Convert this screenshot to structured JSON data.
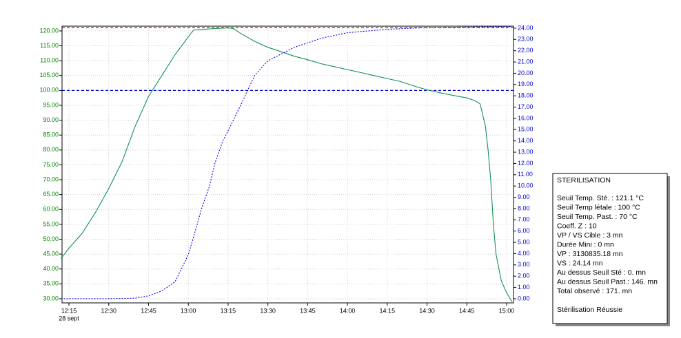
{
  "chart_data": {
    "type": "line",
    "xlim": [
      732.4,
      902.6
    ],
    "xticks": [
      {
        "value": 735,
        "label": "12:15"
      },
      {
        "value": 750,
        "label": "12:30"
      },
      {
        "value": 765,
        "label": "12:45"
      },
      {
        "value": 780,
        "label": "13:00"
      },
      {
        "value": 795,
        "label": "13:15"
      },
      {
        "value": 810,
        "label": "13:30"
      },
      {
        "value": 825,
        "label": "13:45"
      },
      {
        "value": 840,
        "label": "14:00"
      },
      {
        "value": 855,
        "label": "14:15"
      },
      {
        "value": 870,
        "label": "14:30"
      },
      {
        "value": 885,
        "label": "14:45"
      },
      {
        "value": 900,
        "label": "15:00"
      }
    ],
    "date_label": "28 sept",
    "ylim": [
      28.6,
      121.6
    ],
    "yticks": [
      {
        "value": 30,
        "label": "30.00"
      },
      {
        "value": 35,
        "label": "35.00"
      },
      {
        "value": 40,
        "label": "40.00"
      },
      {
        "value": 45,
        "label": "45.00"
      },
      {
        "value": 50,
        "label": "50.00"
      },
      {
        "value": 55,
        "label": "55.00"
      },
      {
        "value": 60,
        "label": "60.00"
      },
      {
        "value": 65,
        "label": "65.00"
      },
      {
        "value": 70,
        "label": "70.00"
      },
      {
        "value": 75,
        "label": "75.00"
      },
      {
        "value": 80,
        "label": "80.00"
      },
      {
        "value": 85,
        "label": "85.00"
      },
      {
        "value": 90,
        "label": "90.00"
      },
      {
        "value": 95,
        "label": "95.00"
      },
      {
        "value": 100,
        "label": "100.00"
      },
      {
        "value": 105,
        "label": "105.00"
      },
      {
        "value": 110,
        "label": "110.00"
      },
      {
        "value": 115,
        "label": "115.00"
      },
      {
        "value": 120,
        "label": "120.00"
      }
    ],
    "y2lim": [
      -0.37,
      24.18
    ],
    "y2ticks": [
      {
        "value": 0,
        "label": "0.00"
      },
      {
        "value": 1,
        "label": "1.00"
      },
      {
        "value": 2,
        "label": "2.00"
      },
      {
        "value": 3,
        "label": "3.00"
      },
      {
        "value": 4,
        "label": "4.00"
      },
      {
        "value": 5,
        "label": "5.00"
      },
      {
        "value": 6,
        "label": "6.00"
      },
      {
        "value": 7,
        "label": "7.00"
      },
      {
        "value": 8,
        "label": "8.00"
      },
      {
        "value": 9,
        "label": "9.00"
      },
      {
        "value": 10,
        "label": "10.00"
      },
      {
        "value": 11,
        "label": "11.00"
      },
      {
        "value": 12,
        "label": "12.00"
      },
      {
        "value": 13,
        "label": "13.00"
      },
      {
        "value": 14,
        "label": "14.00"
      },
      {
        "value": 15,
        "label": "15.00"
      },
      {
        "value": 16,
        "label": "16.00"
      },
      {
        "value": 17,
        "label": "17.00"
      },
      {
        "value": 18,
        "label": "18.00"
      },
      {
        "value": 19,
        "label": "19.00"
      },
      {
        "value": 20,
        "label": "20.00"
      },
      {
        "value": 21,
        "label": "21.00"
      },
      {
        "value": 22,
        "label": "22.00"
      },
      {
        "value": 23,
        "label": "23.00"
      },
      {
        "value": 24,
        "label": "24.00"
      }
    ],
    "y_color": "#008000",
    "y2_color": "#0000cc",
    "grid": true,
    "reference_lines": [
      {
        "value": 121.1,
        "color": "#e00000"
      },
      {
        "value": 100,
        "color": "#0000cc"
      }
    ],
    "series": [
      {
        "color": "#109050",
        "dash": false,
        "x": [
          732,
          735,
          740,
          745,
          750,
          755,
          760,
          765,
          770,
          775,
          780,
          782,
          785,
          790,
          795,
          797,
          800,
          805,
          810,
          815,
          820,
          825,
          830,
          835,
          840,
          845,
          850,
          855,
          860,
          865,
          870,
          875,
          880,
          885,
          888,
          890,
          892,
          893,
          894,
          895,
          896,
          898,
          900,
          902
        ],
        "values": [
          43.5,
          47,
          52,
          59,
          67,
          76,
          88,
          98,
          105,
          112,
          118,
          120.3,
          120.5,
          120.8,
          121,
          120.8,
          119,
          116.5,
          114.5,
          113,
          111.5,
          110.3,
          109,
          108,
          107,
          106,
          105,
          104,
          103,
          101.5,
          100.2,
          99.2,
          98.3,
          97.5,
          96.6,
          95.5,
          88,
          80,
          70,
          55,
          45,
          36,
          32,
          29
        ]
      },
      {
        "color": "#0000ee",
        "dash": true,
        "axis": "y2",
        "x": [
          732,
          740,
          750,
          755,
          760,
          765,
          770,
          775,
          780,
          783,
          785,
          788,
          790,
          793,
          795,
          800,
          805,
          810,
          820,
          830,
          840,
          855,
          870,
          885,
          902
        ],
        "values": [
          0,
          0,
          0,
          0.02,
          0.05,
          0.25,
          0.7,
          1.5,
          3.9,
          6.3,
          8,
          10,
          12,
          14,
          14.9,
          17.3,
          19.8,
          21.1,
          22.3,
          23.1,
          23.6,
          23.9,
          24.05,
          24.1,
          24.14
        ]
      }
    ]
  },
  "panel": {
    "title": "STERILISATION",
    "lines": [
      "Seuil Temp. Sté.  : 121.1 °C",
      "Seuil Temp létale : 100 °C",
      "Seuil Temp. Past. : 70 °C",
      "Coeff. Z  : 10",
      "VP / VS Cible : 3 mn",
      "Durée Mini : 0 mn",
      "VP : 3130835.18 mn",
      "VS : 24.14 mn",
      "Au dessus Seuil Sté  : 0. mn",
      "Au dessus Seuil Past.: 146. mn",
      "Total observé : 171. mn"
    ],
    "status": "Stérilisation Réussie"
  }
}
